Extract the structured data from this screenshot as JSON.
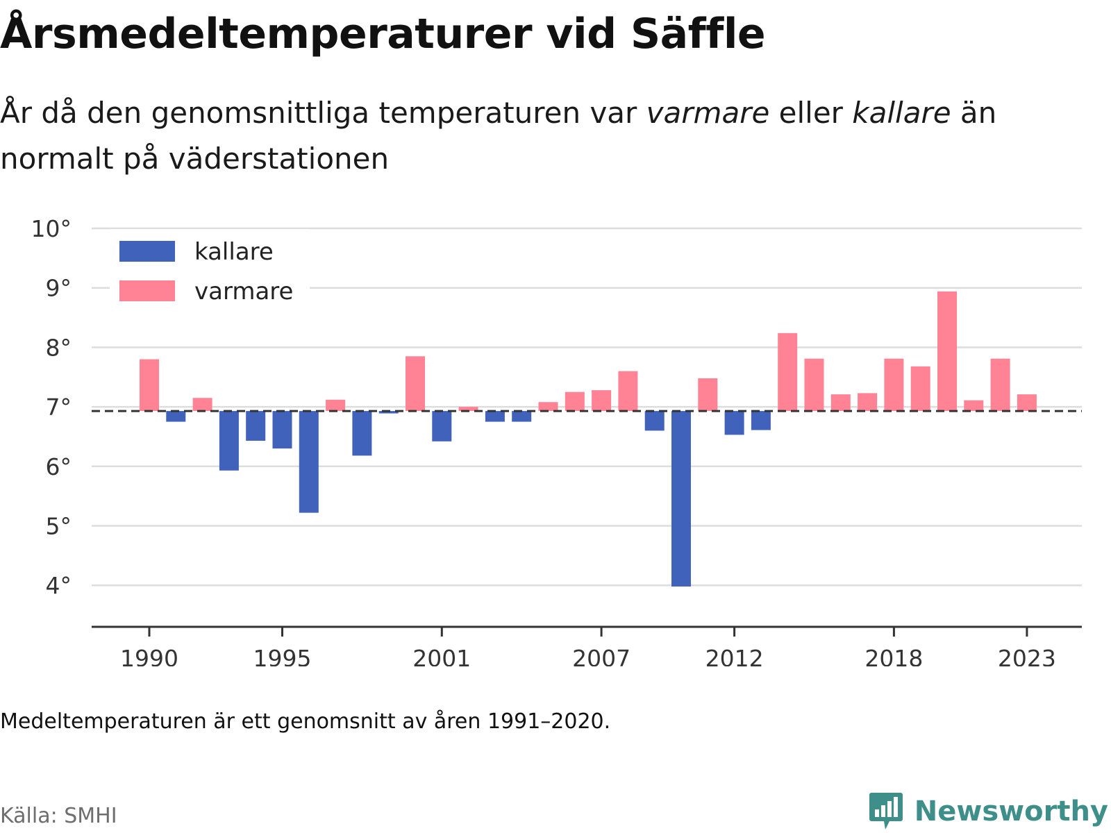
{
  "header": {
    "title": "Årsmedeltemperaturer vid Säffle",
    "subtitle_part1": "År då den genomsnittliga temperaturen var ",
    "subtitle_em1": "varmare",
    "subtitle_part2": " eller ",
    "subtitle_em2": "kallare",
    "subtitle_part3": " än normalt på väderstationen"
  },
  "footer": {
    "note": "Medeltemperaturen är ett genomsnitt av åren 1991–2020.",
    "source": "Källa: SMHI",
    "brand": "Newsworthy",
    "brand_icon": "bar-chart-logo-icon",
    "brand_color": "#3e8f8a"
  },
  "chart_data": {
    "type": "bar",
    "baseline": 6.93,
    "ylim": [
      3.4,
      10.1
    ],
    "y_ticks": [
      {
        "value": 10,
        "label": "10°"
      },
      {
        "value": 9,
        "label": "9°"
      },
      {
        "value": 8,
        "label": "8°"
      },
      {
        "value": 7,
        "label": "7°"
      },
      {
        "value": 6,
        "label": "6°"
      },
      {
        "value": 5,
        "label": "5°"
      },
      {
        "value": 4,
        "label": "4°"
      }
    ],
    "x_ticks": [
      "1990",
      "1995",
      "2001",
      "2007",
      "2012",
      "2018",
      "2023"
    ],
    "grid": true,
    "legend_position": "top-left",
    "series": [
      {
        "name": "kallare",
        "color": "#4062bb"
      },
      {
        "name": "varmare",
        "color": "#ff8295"
      }
    ],
    "years": [
      1990,
      1991,
      1992,
      1993,
      1994,
      1995,
      1996,
      1997,
      1998,
      1999,
      2000,
      2001,
      2002,
      2003,
      2004,
      2005,
      2006,
      2007,
      2008,
      2009,
      2010,
      2011,
      2012,
      2013,
      2014,
      2015,
      2016,
      2017,
      2018,
      2019,
      2020,
      2021,
      2022,
      2023,
      2024
    ],
    "values": [
      7.8,
      6.75,
      7.15,
      5.93,
      6.43,
      6.3,
      5.22,
      7.12,
      6.18,
      6.89,
      7.85,
      6.42,
      7.0,
      6.75,
      6.75,
      7.08,
      7.25,
      7.28,
      7.6,
      6.6,
      3.98,
      7.48,
      6.53,
      6.61,
      8.24,
      7.81,
      7.21,
      7.23,
      7.81,
      7.68,
      8.94,
      7.11,
      7.81,
      7.21,
      null
    ]
  }
}
